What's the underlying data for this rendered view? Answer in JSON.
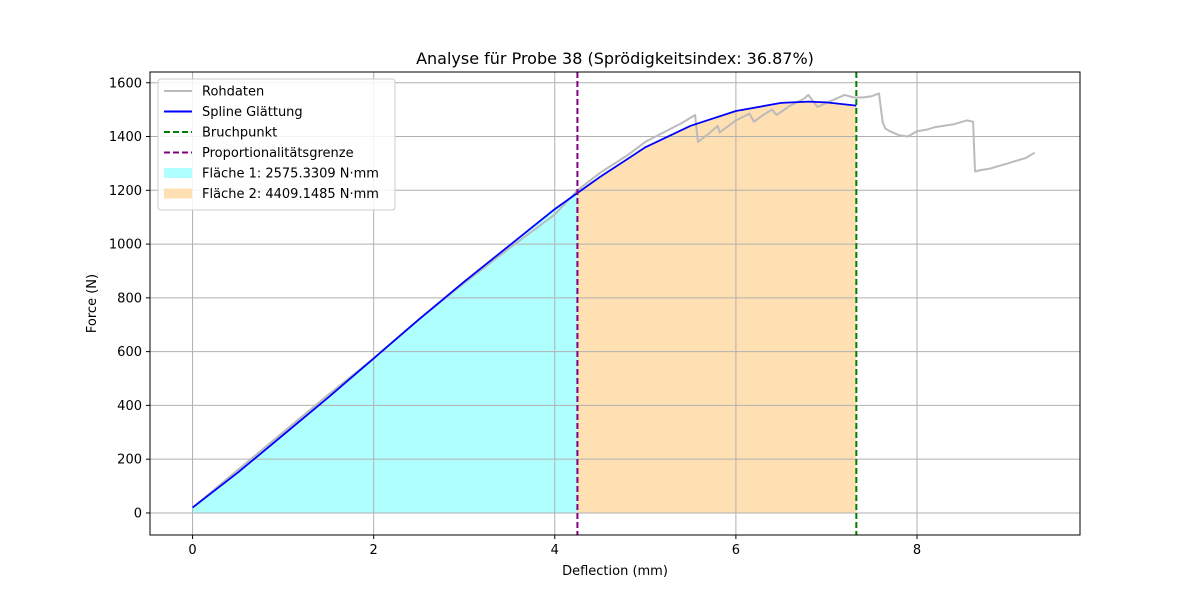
{
  "chart_data": {
    "type": "line",
    "title": "Analyse für Probe 38 (Sprödigkeitsindex: 36.87%)",
    "xlabel": "Deflection (mm)",
    "ylabel": "Force (N)",
    "xlim": [
      -0.47,
      9.8
    ],
    "ylim": [
      -82,
      1640
    ],
    "xticks": [
      0,
      2,
      4,
      6,
      8
    ],
    "yticks": [
      0,
      200,
      400,
      600,
      800,
      1000,
      1200,
      1400,
      1600
    ],
    "grid": true,
    "legend_position": "upper left",
    "colors": {
      "raw": "#bbbbbb",
      "spline": "#0000ff",
      "break": "#008000",
      "proportional": "#800080",
      "area1": "#b0ffff",
      "area2": "#ffe0b2"
    },
    "legend": [
      {
        "key": "raw",
        "label": "Rohdaten",
        "style": "line"
      },
      {
        "key": "spline",
        "label": "Spline Glättung",
        "style": "line"
      },
      {
        "key": "break",
        "label": "Bruchpunkt",
        "style": "dashed"
      },
      {
        "key": "proportional",
        "label": "Proportionalitätsgrenze",
        "style": "dashed"
      },
      {
        "key": "area1",
        "label": "Fläche 1: 2575.3309 N·mm",
        "style": "patch"
      },
      {
        "key": "area2",
        "label": "Fläche 2: 4409.1485 N·mm",
        "style": "patch"
      }
    ],
    "proportional_limit_x": 4.25,
    "break_point_x": 7.33,
    "series": [
      {
        "key": "raw",
        "name": "Rohdaten",
        "x": [
          0,
          0.5,
          1.0,
          1.5,
          2.0,
          2.5,
          3.0,
          3.5,
          4.0,
          4.25,
          4.5,
          4.8,
          5.0,
          5.2,
          5.4,
          5.55,
          5.58,
          5.7,
          5.8,
          5.82,
          6.0,
          6.15,
          6.2,
          6.3,
          6.4,
          6.45,
          6.6,
          6.75,
          6.8,
          6.9,
          7.0,
          7.1,
          7.2,
          7.3,
          7.4,
          7.5,
          7.58,
          7.62,
          7.65,
          7.7,
          7.8,
          7.9,
          8.0,
          8.1,
          8.2,
          8.3,
          8.4,
          8.55,
          8.62,
          8.64,
          8.7,
          8.8,
          8.9,
          9.0,
          9.1,
          9.2,
          9.3
        ],
        "y": [
          20,
          160,
          300,
          440,
          575,
          720,
          855,
          985,
          1110,
          1200,
          1265,
          1330,
          1380,
          1415,
          1450,
          1480,
          1380,
          1410,
          1440,
          1415,
          1460,
          1485,
          1455,
          1480,
          1500,
          1480,
          1515,
          1540,
          1555,
          1510,
          1525,
          1540,
          1555,
          1545,
          1545,
          1550,
          1560,
          1455,
          1430,
          1420,
          1405,
          1400,
          1420,
          1425,
          1435,
          1440,
          1445,
          1460,
          1455,
          1270,
          1275,
          1280,
          1290,
          1300,
          1310,
          1320,
          1340
        ]
      },
      {
        "key": "spline",
        "name": "Spline Glättung",
        "x": [
          0,
          0.5,
          1.0,
          1.5,
          2.0,
          2.5,
          3.0,
          3.5,
          4.0,
          4.25,
          4.5,
          5.0,
          5.5,
          6.0,
          6.5,
          6.8,
          7.0,
          7.33
        ],
        "y": [
          20,
          150,
          290,
          430,
          575,
          720,
          860,
          995,
          1130,
          1190,
          1250,
          1360,
          1440,
          1495,
          1525,
          1530,
          1527,
          1515
        ]
      }
    ],
    "areas": [
      {
        "key": "area1",
        "name": "Fläche 1: 2575.3309 N·mm",
        "x_from": 0,
        "x_to": 4.25
      },
      {
        "key": "area2",
        "name": "Fläche 2: 4409.1485 N·mm",
        "x_from": 4.25,
        "x_to": 7.33
      }
    ]
  }
}
